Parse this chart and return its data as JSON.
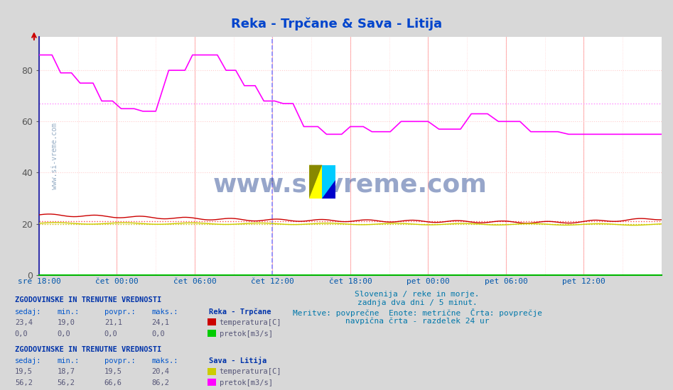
{
  "title": "Reka - Trpčane & Sava - Litija",
  "title_color": "#0044cc",
  "bg_color": "#d8d8d8",
  "plot_bg_color": "#ffffff",
  "ylim": [
    0,
    93
  ],
  "yticks": [
    0,
    20,
    40,
    60,
    80
  ],
  "grid_color_v": "#ffaaaa",
  "grid_color_h": "#ffcccc",
  "hline_magenta": 67.0,
  "hline_red": 21.1,
  "hline_yellow": 20.0,
  "n_points": 577,
  "subtitle_lines": [
    "Slovenija / reke in morje.",
    "zadnja dva dni / 5 minut.",
    "Meritve: povprečne  Enote: metrične  Črta: povprečje",
    "navpična črta - razdelek 24 ur"
  ],
  "xtick_labels": [
    "sre 18:00",
    "čet 00:00",
    "čet 06:00",
    "čet 12:00",
    "čet 18:00",
    "pet 00:00",
    "pet 06:00",
    "pet 12:00"
  ],
  "xtick_positions": [
    0,
    72,
    144,
    216,
    288,
    360,
    432,
    504
  ],
  "vline_pos": 216,
  "legend_section1_title": "Reka - Trpčane",
  "legend_section2_title": "Sava - Litija",
  "stats_header": "ZGODOVINSKE IN TRENUTNE VREDNOSTI",
  "stats_cols": [
    "sedaj:",
    "min.:",
    "povpr.:",
    "maks.:"
  ],
  "reka_temp_vals": [
    "23,4",
    "19,0",
    "21,1",
    "24,1"
  ],
  "reka_pretok_vals": [
    "0,0",
    "0,0",
    "0,0",
    "0,0"
  ],
  "sava_temp_vals": [
    "19,5",
    "18,7",
    "19,5",
    "20,4"
  ],
  "sava_pretok_vals": [
    "56,2",
    "56,2",
    "66,6",
    "86,2"
  ],
  "color_reka_temp": "#cc0000",
  "color_reka_pretok": "#00cc00",
  "color_sava_temp": "#cccc00",
  "color_sava_pretok": "#ff00ff",
  "color_black_line": "#222222",
  "watermark": "www.si-vreme.com",
  "watermark_color": "#1a3a8a",
  "logo_yellow": "#ffff00",
  "logo_cyan": "#00ccff",
  "logo_blue": "#0000cc"
}
